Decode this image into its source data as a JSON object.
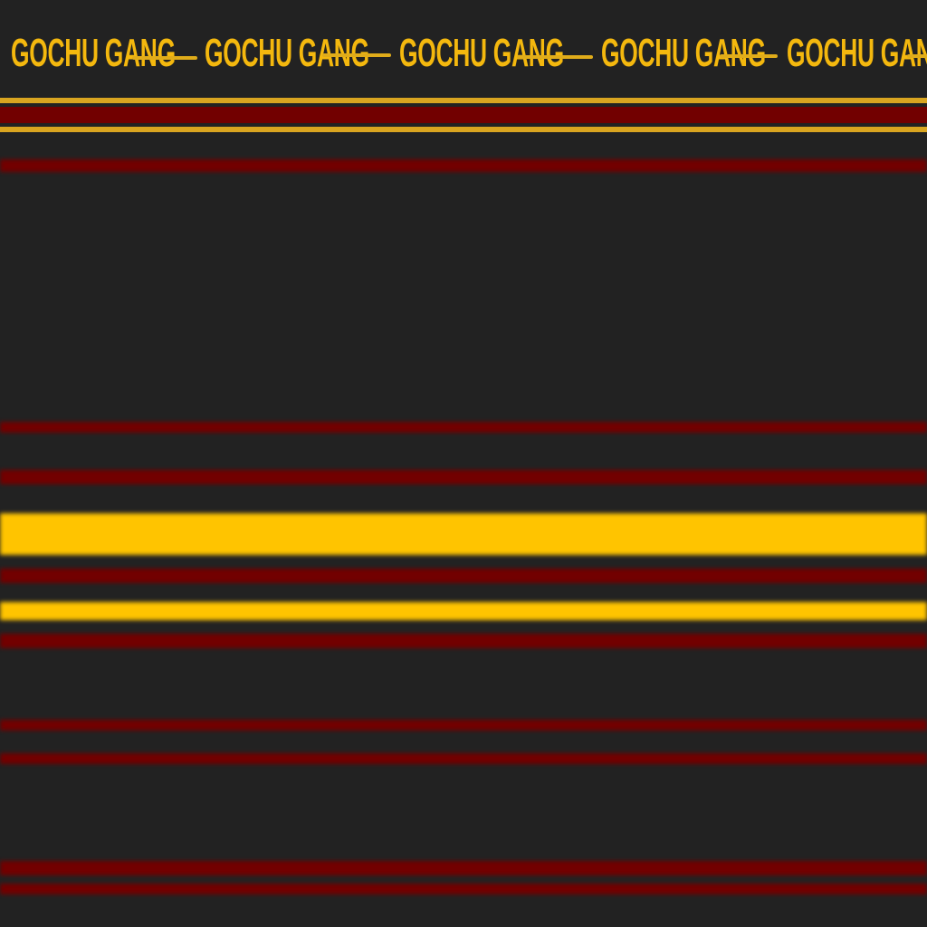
{
  "banner": {
    "repeat_text": "GOCHU GANG",
    "repeat_count": 5
  },
  "colors": {
    "background": "#222222",
    "brand_yellow": "#f4b80e",
    "stripe_yellow": "#ffc400",
    "stripe_gold": "#d9a520",
    "stripe_red": "#720000"
  }
}
